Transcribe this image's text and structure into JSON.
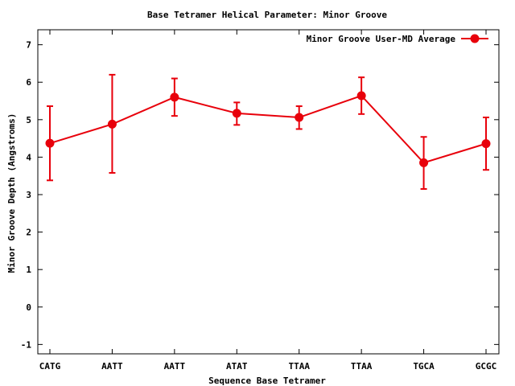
{
  "chart_data": {
    "type": "line",
    "title": "Base Tetramer Helical Parameter: Minor Groove",
    "xlabel": "Sequence Base Tetramer",
    "ylabel": "Minor Groove Depth (Angstroms)",
    "categories": [
      "CATG",
      "AATT",
      "AATT",
      "ATAT",
      "TTAA",
      "TTAA",
      "TGCA",
      "GCGC"
    ],
    "ylim": [
      -1.25,
      7.4
    ],
    "yticks": [
      -1,
      0,
      1,
      2,
      3,
      4,
      5,
      6,
      7
    ],
    "grid": false,
    "legend_position": "top-right",
    "series": [
      {
        "name": "Minor Groove User-MD Average",
        "color": "#e8000b",
        "values": [
          4.37,
          4.88,
          5.6,
          5.17,
          5.06,
          5.64,
          3.85,
          4.36
        ],
        "error_low": [
          3.38,
          3.58,
          5.1,
          4.86,
          4.75,
          5.15,
          3.15,
          3.66
        ],
        "error_high": [
          5.36,
          6.2,
          6.1,
          5.46,
          5.36,
          6.13,
          4.54,
          5.06
        ]
      }
    ]
  }
}
